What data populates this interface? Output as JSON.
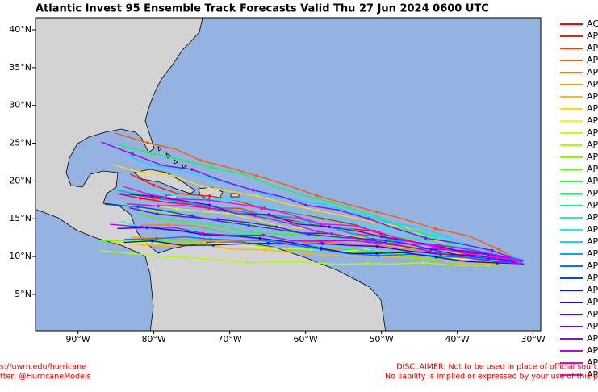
{
  "map": {
    "title": "Atlantic Invest 95 Ensemble Track Forecasts Valid Thu 27 Jun 2024 0600 UTC",
    "lat_ticks": [
      {
        "value": 5,
        "label": "5°N"
      },
      {
        "value": 10,
        "label": "10°N"
      },
      {
        "value": 15,
        "label": "15°N"
      },
      {
        "value": 20,
        "label": "20°N"
      },
      {
        "value": 25,
        "label": "25°N"
      },
      {
        "value": 30,
        "label": "30°N"
      },
      {
        "value": 35,
        "label": "35°N"
      },
      {
        "value": 40,
        "label": "40°N"
      }
    ],
    "lon_ticks": [
      {
        "value": -90,
        "label": "90°W"
      },
      {
        "value": -80,
        "label": "80°W"
      },
      {
        "value": -70,
        "label": "70°W"
      },
      {
        "value": -60,
        "label": "60°W"
      },
      {
        "value": -50,
        "label": "50°W"
      },
      {
        "value": -40,
        "label": "40°W"
      },
      {
        "value": -30,
        "label": "30°W"
      }
    ],
    "legend": [
      {
        "name": "AC",
        "color": "#ff0000"
      },
      {
        "name": "AP",
        "color": "#ff1a00"
      },
      {
        "name": "AP",
        "color": "#ff3a00"
      },
      {
        "name": "AP",
        "color": "#ff5a00"
      },
      {
        "name": "AP",
        "color": "#ff7a00"
      },
      {
        "name": "AP",
        "color": "#ff9a00"
      },
      {
        "name": "AP",
        "color": "#ffba00"
      },
      {
        "name": "AP",
        "color": "#ffdd00"
      },
      {
        "name": "AP",
        "color": "#eeff00"
      },
      {
        "name": "AP",
        "color": "#ccff00"
      },
      {
        "name": "AP",
        "color": "#aaff00"
      },
      {
        "name": "AP",
        "color": "#88ff00"
      },
      {
        "name": "AP",
        "color": "#55ff00"
      },
      {
        "name": "AP",
        "color": "#22ff22"
      },
      {
        "name": "AP",
        "color": "#00ff55"
      },
      {
        "name": "AP",
        "color": "#00ff88"
      },
      {
        "name": "AP",
        "color": "#00ffbb"
      },
      {
        "name": "AP",
        "color": "#00ffee"
      },
      {
        "name": "AP",
        "color": "#00ddff"
      },
      {
        "name": "AP",
        "color": "#00aaff"
      },
      {
        "name": "AP",
        "color": "#0077ff"
      },
      {
        "name": "AP",
        "color": "#0044ff"
      },
      {
        "name": "AP",
        "color": "#0011ff"
      },
      {
        "name": "AP",
        "color": "#2200ff"
      },
      {
        "name": "AP",
        "color": "#5500ff"
      },
      {
        "name": "AP",
        "color": "#7700ff"
      },
      {
        "name": "AP",
        "color": "#9900ff"
      },
      {
        "name": "AP",
        "color": "#bb00ff"
      },
      {
        "name": "AP",
        "color": "#dd00ff"
      },
      {
        "name": "AP",
        "color": "#ff00ee"
      }
    ],
    "footer_left": [
      "s://uwm.edu/hurricane",
      "tter: @HurricaneModels"
    ],
    "footer_right": [
      "DISCLAIMER: Not to be used in place of official sourc",
      "No liability is implied or expressed by your use of this p"
    ]
  }
}
